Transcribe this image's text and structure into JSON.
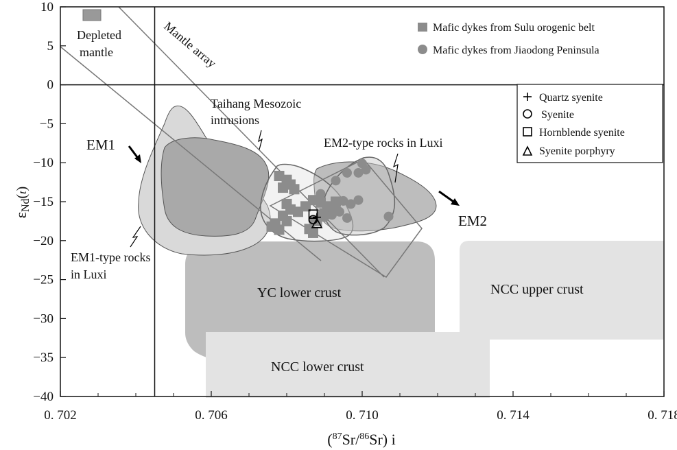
{
  "chart_data": {
    "type": "scatter",
    "title": "",
    "xlabel": "(87Sr/86Sr) i",
    "ylabel": "εNd(t)",
    "xlim": [
      0.702,
      0.718
    ],
    "ylim": [
      -40,
      10
    ],
    "xticks": [
      0.702,
      0.706,
      0.71,
      0.714,
      0.718
    ],
    "xtick_labels": [
      "0. 702",
      "0. 706",
      "0. 710",
      "0. 714",
      "0. 718"
    ],
    "yticks": [
      10,
      5,
      0,
      -5,
      -10,
      -15,
      -20,
      -25,
      -30,
      -35,
      -40
    ],
    "ytick_labels": [
      "10",
      "5",
      "0",
      "−5",
      "−10",
      "−15",
      "−20",
      "−25",
      "−30",
      "−35",
      "−40"
    ],
    "reference_lines": {
      "bulk_earth_sr": 0.7045,
      "chur_epsilon_nd": 0
    },
    "series": [
      {
        "name": "Mafic dykes from Sulu orogenic belt",
        "marker": "filled-square",
        "color": "#8c8c8c",
        "points": [
          [
            0.7078,
            -11.7
          ],
          [
            0.7079,
            -13.2
          ],
          [
            0.708,
            -12.2
          ],
          [
            0.7081,
            -12.8
          ],
          [
            0.7082,
            -13.4
          ],
          [
            0.708,
            -15.3
          ],
          [
            0.7081,
            -16.0
          ],
          [
            0.7083,
            -16.3
          ],
          [
            0.7085,
            -15.6
          ],
          [
            0.7087,
            -14.8
          ],
          [
            0.7089,
            -15.1
          ],
          [
            0.7091,
            -15.6
          ],
          [
            0.7093,
            -15.0
          ],
          [
            0.7079,
            -16.8
          ],
          [
            0.708,
            -17.5
          ],
          [
            0.7077,
            -17.8
          ],
          [
            0.7076,
            -18.2
          ],
          [
            0.7078,
            -18.6
          ],
          [
            0.7086,
            -18.5
          ],
          [
            0.7087,
            -19.0
          ],
          [
            0.7088,
            -17.5
          ],
          [
            0.709,
            -16.5
          ]
        ]
      },
      {
        "name": "Mafic dykes from Jiaodong Peninsula",
        "marker": "filled-circle",
        "color": "#8c8c8c",
        "points": [
          [
            0.71,
            -10.1
          ],
          [
            0.7101,
            -10.9
          ],
          [
            0.7099,
            -11.3
          ],
          [
            0.7096,
            -11.3
          ],
          [
            0.7093,
            -12.3
          ],
          [
            0.7089,
            -14.0
          ],
          [
            0.7095,
            -14.9
          ],
          [
            0.7097,
            -15.3
          ],
          [
            0.7099,
            -14.8
          ],
          [
            0.7091,
            -15.7
          ],
          [
            0.7092,
            -16.7
          ],
          [
            0.7094,
            -16.3
          ],
          [
            0.7096,
            -17.1
          ],
          [
            0.709,
            -17.0
          ],
          [
            0.7107,
            -16.9
          ],
          [
            0.7087,
            -17.4
          ],
          [
            0.7089,
            -16.8
          ],
          [
            0.7093,
            -15.9
          ]
        ]
      },
      {
        "name": "Quartz syenite",
        "marker": "plus",
        "color": "#000000",
        "points": [
          [
            0.7088,
            -17.0
          ]
        ]
      },
      {
        "name": "Syenite",
        "marker": "open-circle",
        "color": "#000000",
        "points": [
          [
            0.7087,
            -17.3
          ]
        ]
      },
      {
        "name": "Hornblende syenite",
        "marker": "open-square",
        "color": "#000000",
        "points": [
          [
            0.7087,
            -16.6
          ]
        ]
      },
      {
        "name": "Syenite porphyry",
        "marker": "open-triangle",
        "color": "#000000",
        "points": [
          [
            0.7088,
            -17.8
          ]
        ]
      }
    ],
    "fields": [
      {
        "name": "NCC lower crust",
        "label": "NCC lower crust",
        "color": "#e3e3e3"
      },
      {
        "name": "NCC upper crust",
        "label": "NCC upper crust",
        "color": "#e3e3e3"
      },
      {
        "name": "YC lower crust",
        "label": "YC lower crust",
        "color": "#bdbdbd"
      },
      {
        "name": "EM1-type rocks in Luxi",
        "label": "EM1-type rocks\nin Luxi",
        "color": "#d9d9d9"
      },
      {
        "name": "Taihang Mesozoic intrusions",
        "label": "Taihang Mesozoic\nintrusions",
        "color": "#a9a9a9"
      },
      {
        "name": "EM2-type rocks in Luxi",
        "label": "EM2-type rocks in Luxi",
        "color": "#bdbdbd"
      },
      {
        "name": "Mantle array",
        "label": "Mantle array",
        "color": "#777777"
      },
      {
        "name": "Depleted mantle",
        "label": "Depleted\nmantle",
        "color": "#999999"
      }
    ],
    "annotations": [
      {
        "text": "EM1",
        "arrow": true
      },
      {
        "text": "EM2",
        "arrow": true
      }
    ],
    "legends": [
      {
        "position": "top-right",
        "entries": [
          "Mafic dykes from Sulu orogenic belt",
          "Mafic dykes from Jiaodong Peninsula"
        ]
      },
      {
        "position": "upper-right-inset",
        "entries": [
          "Quartz syenite",
          "Syenite",
          "Hornblende syenite",
          "Syenite porphyry"
        ]
      }
    ]
  }
}
